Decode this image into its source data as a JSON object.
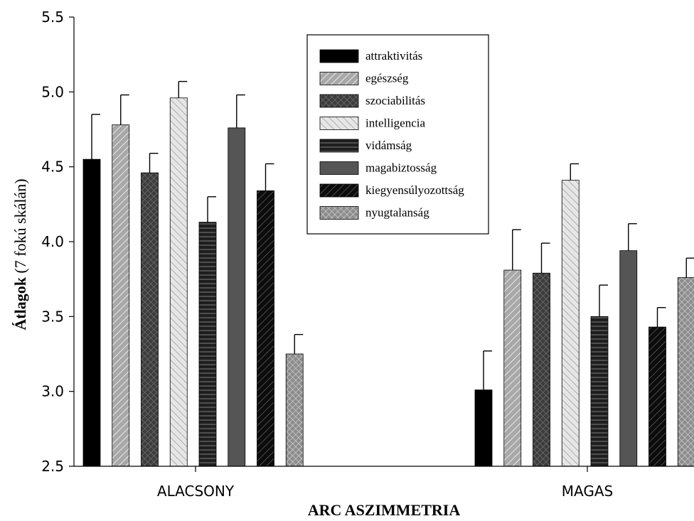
{
  "chart_data": {
    "type": "bar",
    "xlabel": "ARC ASZIMMETRIA",
    "ylabel_bold": "Átlagok",
    "ylabel_rest": " (7 fokú skálán)",
    "ylim": [
      2.5,
      5.5
    ],
    "yticks": [
      "2.5",
      "3.0",
      "3.5",
      "4.0",
      "4.5",
      "5.0",
      "5.5"
    ],
    "categories": [
      "ALACSONY",
      "MAGAS"
    ],
    "legend_position": "top-center",
    "grid": false,
    "series": [
      {
        "name": "attraktivitás",
        "values": [
          4.55,
          3.01
        ],
        "errors": [
          0.3,
          0.26
        ],
        "color": "#000000",
        "pattern": "solid"
      },
      {
        "name": "egészség",
        "values": [
          4.78,
          3.81
        ],
        "errors": [
          0.2,
          0.27
        ],
        "color": "#a8a8a8",
        "pattern": "diag-right"
      },
      {
        "name": "szociabilitás",
        "values": [
          4.46,
          3.79
        ],
        "errors": [
          0.13,
          0.2
        ],
        "color": "#404040",
        "pattern": "crosshatch-dark"
      },
      {
        "name": "intelligencia",
        "values": [
          4.96,
          4.41
        ],
        "errors": [
          0.11,
          0.11
        ],
        "color": "#d8d8d8",
        "pattern": "diag-left"
      },
      {
        "name": "vidámság",
        "values": [
          4.13,
          3.5
        ],
        "errors": [
          0.17,
          0.21
        ],
        "color": "#202020",
        "pattern": "horizontal"
      },
      {
        "name": "magabiztosság",
        "values": [
          4.76,
          3.94
        ],
        "errors": [
          0.22,
          0.18
        ],
        "color": "#555555",
        "pattern": "solid"
      },
      {
        "name": "kiegyensúlyozottság",
        "values": [
          4.34,
          3.43
        ],
        "errors": [
          0.18,
          0.13
        ],
        "color": "#141414",
        "pattern": "diag-right-dark"
      },
      {
        "name": "nyugtalanság",
        "values": [
          3.25,
          3.76
        ],
        "errors": [
          0.13,
          0.13
        ],
        "color": "#9a9a9a",
        "pattern": "crosshatch-light"
      }
    ]
  }
}
